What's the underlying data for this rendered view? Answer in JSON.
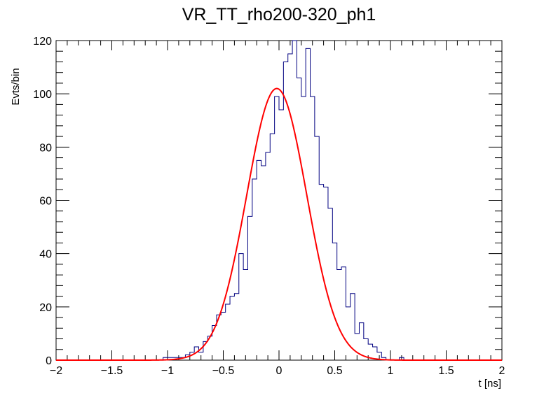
{
  "chart_data": {
    "type": "histogram",
    "title": "VR_TT_rho200-320_ph1",
    "xlabel": "t [ns]",
    "ylabel": "Evts/bin",
    "xlim": [
      -2,
      2
    ],
    "ylim": [
      0,
      120
    ],
    "x_ticks": [
      -2,
      -1.5,
      -1,
      -0.5,
      0,
      0.5,
      1,
      1.5,
      2
    ],
    "x_tick_labels": [
      "−2",
      "−1.5",
      "−1",
      "−0.5",
      "0",
      "0.5",
      "1",
      "1.5",
      "2"
    ],
    "y_ticks": [
      0,
      20,
      40,
      60,
      80,
      100,
      120
    ],
    "y_tick_labels": [
      "0",
      "20",
      "40",
      "60",
      "80",
      "100",
      "120"
    ],
    "histogram": {
      "name": "data",
      "color": "#000080",
      "bin_width": 0.04,
      "bin_edges_start": -2.0,
      "counts": [
        0,
        0,
        0,
        0,
        0,
        0,
        0,
        0,
        0,
        0,
        0,
        0,
        0,
        0,
        0,
        0,
        0,
        0,
        0,
        0,
        0,
        0,
        0,
        0,
        1,
        1,
        1,
        1,
        1,
        2,
        3,
        5,
        3,
        7,
        9,
        13,
        17,
        18,
        21,
        24,
        25,
        40,
        34,
        54,
        68,
        75,
        73,
        78,
        85,
        99,
        94,
        112,
        115,
        122,
        106,
        99,
        117,
        99,
        84,
        66,
        65,
        57,
        44,
        34,
        35,
        20,
        25,
        10,
        14,
        8,
        6,
        5,
        3,
        1,
        0,
        0,
        0,
        1,
        0,
        0,
        0,
        0,
        0,
        0,
        0,
        0,
        0,
        0,
        0,
        0,
        0,
        0,
        0,
        0,
        0,
        0,
        0,
        0,
        0,
        0
      ]
    },
    "fit": {
      "name": "gaussian fit",
      "color": "#ff0000",
      "amplitude": 102,
      "mean": -0.02,
      "sigma": 0.27
    }
  }
}
